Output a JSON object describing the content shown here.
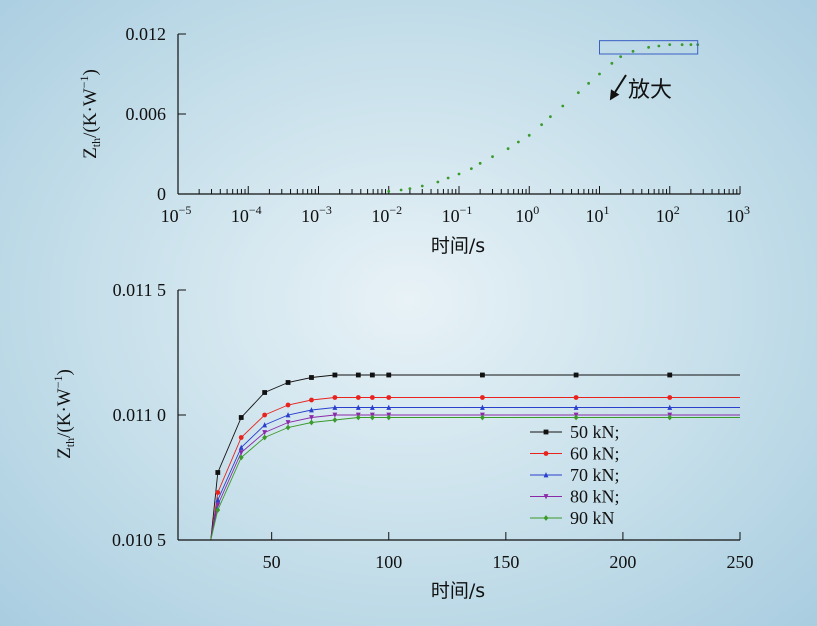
{
  "chart_data": [
    {
      "type": "scatter",
      "title": "",
      "xlabel": "时间/s",
      "ylabel": {
        "main": "Z",
        "sub": "th",
        "unit": "/(K·W",
        "sup": "−1",
        "close": ")"
      },
      "xscale": "log",
      "xlim": [
        1e-05,
        1000
      ],
      "ylim": [
        0,
        0.012
      ],
      "yticks": [
        0,
        0.006,
        0.012
      ],
      "ytick_labels": [
        "0",
        "0.006",
        "0.012"
      ],
      "xticks": [
        1e-05,
        0.0001,
        0.001,
        0.01,
        0.1,
        1,
        10,
        100,
        1000
      ],
      "xtick_labels": [
        {
          "base": "10",
          "exp": "−5"
        },
        {
          "base": "10",
          "exp": "−4"
        },
        {
          "base": "10",
          "exp": "−3"
        },
        {
          "base": "10",
          "exp": "−2"
        },
        {
          "base": "10",
          "exp": "−1"
        },
        {
          "base": "10",
          "exp": "0"
        },
        {
          "base": "10",
          "exp": "1"
        },
        {
          "base": "10",
          "exp": "2"
        },
        {
          "base": "10",
          "exp": "3"
        }
      ],
      "annotation": "放大",
      "zoom_box": {
        "x": [
          10,
          250
        ],
        "y": [
          0.0105,
          0.0115
        ]
      },
      "grid": false,
      "series": [
        {
          "color": "#3a9a2a",
          "x": [
            0.01,
            0.015,
            0.02,
            0.03,
            0.05,
            0.07,
            0.1,
            0.15,
            0.2,
            0.3,
            0.5,
            0.7,
            1,
            1.5,
            2,
            3,
            5,
            7,
            10,
            15,
            20,
            30,
            50,
            70,
            100,
            150,
            200,
            250
          ],
          "y": [
            0.0002,
            0.0003,
            0.0004,
            0.0006,
            0.0009,
            0.0012,
            0.0015,
            0.0019,
            0.0023,
            0.0028,
            0.0034,
            0.0039,
            0.0044,
            0.0052,
            0.0058,
            0.0066,
            0.0076,
            0.0083,
            0.009,
            0.0098,
            0.0103,
            0.0107,
            0.011,
            0.0111,
            0.0112,
            0.0112,
            0.0112,
            0.0112
          ]
        }
      ]
    },
    {
      "type": "line",
      "title": "",
      "xlabel": "时间/s",
      "ylabel": {
        "main": "Z",
        "sub": "th",
        "unit": "/(K·W",
        "sup": "−1",
        "close": ")"
      },
      "xlim": [
        10,
        250
      ],
      "ylim": [
        0.0105,
        0.0115
      ],
      "xticks": [
        50,
        100,
        150,
        200,
        250
      ],
      "xtick_labels": [
        "50",
        "100",
        "150",
        "200",
        "250"
      ],
      "yticks": [
        0.0105,
        0.011,
        0.0115
      ],
      "ytick_labels": [
        "0.010 5",
        "0.011 0",
        "0.011 5"
      ],
      "legend_position": "lower-right",
      "grid": false,
      "series": [
        {
          "name": "50 kN;",
          "color": "#111111",
          "marker": "square",
          "x": [
            27,
            37,
            47,
            57,
            67,
            77,
            87,
            93,
            100,
            140,
            180,
            220
          ],
          "y": [
            0.01077,
            0.01099,
            0.01109,
            0.01113,
            0.01115,
            0.01116,
            0.01116,
            0.01116,
            0.01116,
            0.01116,
            0.01116,
            0.01116
          ]
        },
        {
          "name": "60 kN;",
          "color": "#e8231e",
          "marker": "circle",
          "x": [
            27,
            37,
            47,
            57,
            67,
            77,
            87,
            93,
            100,
            140,
            180,
            220
          ],
          "y": [
            0.01069,
            0.01091,
            0.011,
            0.01104,
            0.01106,
            0.01107,
            0.01107,
            0.01107,
            0.01107,
            0.01107,
            0.01107,
            0.01107
          ]
        },
        {
          "name": "70 kN;",
          "color": "#2a3fcc",
          "marker": "triangle-up",
          "x": [
            27,
            37,
            47,
            57,
            67,
            77,
            87,
            93,
            100,
            140,
            180,
            220
          ],
          "y": [
            0.01066,
            0.01087,
            0.01096,
            0.011,
            0.01102,
            0.01103,
            0.01103,
            0.01103,
            0.01103,
            0.01103,
            0.01103,
            0.01103
          ]
        },
        {
          "name": "80 kN;",
          "color": "#8a2aa8",
          "marker": "triangle-down",
          "x": [
            27,
            37,
            47,
            57,
            67,
            77,
            87,
            93,
            100,
            140,
            180,
            220
          ],
          "y": [
            0.01064,
            0.01085,
            0.01093,
            0.01097,
            0.01099,
            0.011,
            0.011,
            0.011,
            0.011,
            0.011,
            0.011,
            0.011
          ]
        },
        {
          "name": "90 kN",
          "color": "#3a9a2a",
          "marker": "diamond",
          "x": [
            27,
            37,
            47,
            57,
            67,
            77,
            87,
            93,
            100,
            140,
            180,
            220
          ],
          "y": [
            0.01062,
            0.01083,
            0.01091,
            0.01095,
            0.01097,
            0.01098,
            0.01099,
            0.01099,
            0.01099,
            0.01099,
            0.01099,
            0.01099
          ]
        }
      ]
    }
  ]
}
